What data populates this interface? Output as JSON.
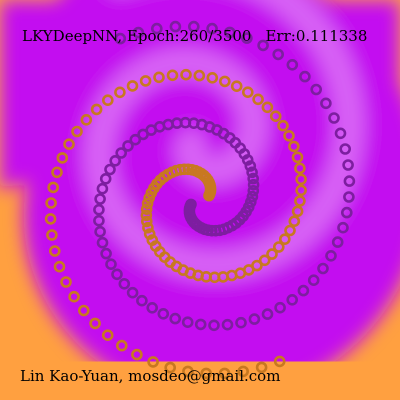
{
  "header": {
    "model": "LKYDeepNN,",
    "epoch_label": "Epoch:",
    "epoch_value": "260/3500",
    "err_label": "Err:",
    "err_value": "0.111338"
  },
  "footer": {
    "credit": "Lin Kao-Yuan, mosdeo@gmail.com"
  },
  "colors": {
    "class_a": "#ffa040",
    "class_b": "#c30ff0",
    "class_a_point": "#c87820",
    "class_b_point": "#7d1ea0"
  },
  "chart_data": {
    "type": "scatter",
    "title": "LKYDeepNN, Epoch:260/3500   Err:0.111338",
    "xlabel": "",
    "ylabel": "",
    "xlim": [
      -1,
      1
    ],
    "ylim": [
      -1,
      1
    ],
    "grid": false,
    "legend": "none",
    "series": [
      {
        "name": "purple-spiral",
        "color": "#7d1ea0",
        "arm_rotation": 0,
        "r_range": [
          0.05,
          0.9
        ],
        "turns": 1.75,
        "n_points": 105
      },
      {
        "name": "orange-spiral",
        "color": "#c87820",
        "arm_rotation": 3.14159,
        "r_range": [
          0.05,
          0.9
        ],
        "turns": 1.75,
        "n_points": 105
      }
    ]
  }
}
